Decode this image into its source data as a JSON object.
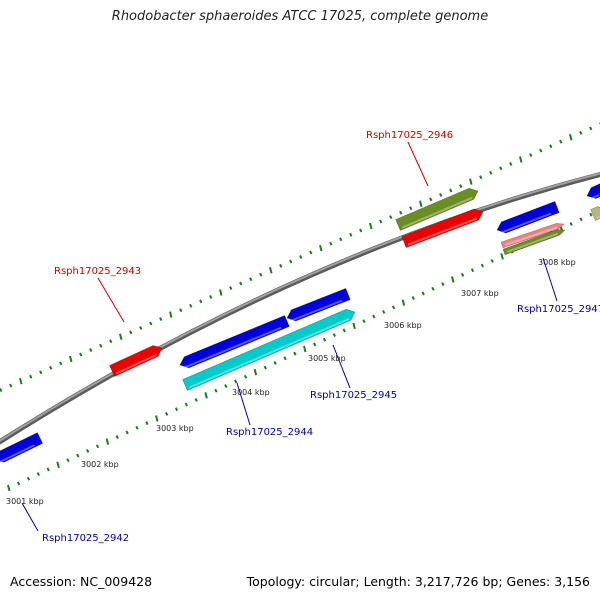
{
  "title": "Rhodobacter sphaeroides ATCC 17025, complete genome",
  "accession": "Accession: NC_009428",
  "stats": "Topology: circular; Length: 3,217,726 bp; Genes: 3,156",
  "colors": {
    "backbone": "#8a8a8a",
    "tick": "#1e7d1e",
    "forward_label": "#cc0000",
    "reverse_label": "#0000aa"
  },
  "scale": {
    "unit": "kbp",
    "labels": [
      "3001 kbp",
      "3002 kbp",
      "3003 kbp",
      "3004 kbp",
      "3005 kbp",
      "3006 kbp",
      "3007 kbp",
      "3008 kbp"
    ]
  },
  "labels": [
    {
      "text": "Rsph17025_2942",
      "strand": "reverse"
    },
    {
      "text": "Rsph17025_2943",
      "strand": "forward"
    },
    {
      "text": "Rsph17025_2944",
      "strand": "reverse"
    },
    {
      "text": "Rsph17025_2945",
      "strand": "reverse"
    },
    {
      "text": "Rsph17025_2946",
      "strand": "forward"
    },
    {
      "text": "Rsph17025_2947",
      "strand": "reverse"
    }
  ],
  "features": [
    {
      "color": "#0000dd",
      "kind": "gene"
    },
    {
      "color": "#ee0000",
      "kind": "gene"
    },
    {
      "color": "#0000dd",
      "kind": "gene"
    },
    {
      "color": "#0000dd",
      "kind": "gene"
    },
    {
      "color": "#00cccc",
      "kind": "gene"
    },
    {
      "color": "#6b8e23",
      "kind": "gene"
    },
    {
      "color": "#ee0000",
      "kind": "gene"
    },
    {
      "color": "#0000dd",
      "kind": "gene"
    },
    {
      "color": "#f08080",
      "kind": "gene"
    },
    {
      "color": "#6b8e23",
      "kind": "gene"
    },
    {
      "color": "#0000dd",
      "kind": "gene"
    },
    {
      "color": "#bdb76b",
      "kind": "gene"
    }
  ]
}
